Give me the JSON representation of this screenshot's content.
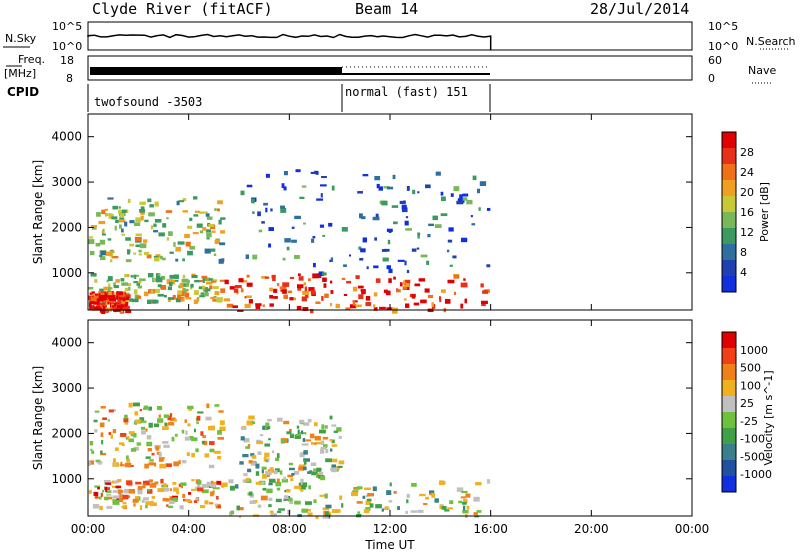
{
  "header": {
    "title": "Clyde River (fitACF)",
    "beam": "Beam 14",
    "date": "28/Jul/2014"
  },
  "summary": {
    "nsky_label": "N.Sky",
    "nsky_top": "10^5",
    "nsky_bottom": "10^0",
    "nsearch_label": "N.Search",
    "nsearch_top": "10^5",
    "nsearch_bottom": "10^0",
    "freq_label_1": "Freq.",
    "freq_label_2": "[MHz]",
    "freq_top": "18",
    "freq_bottom": "8",
    "nave_label": "Nave",
    "nave_top": "60",
    "nave_bottom": "0",
    "cpid_label": "CPID",
    "cpid_1": "twofsound -3503",
    "cpid_2": "normal (fast) 151"
  },
  "colors": {
    "power": [
      "#1030e0",
      "#2040b0",
      "#2f6fa0",
      "#3a9a60",
      "#78b858",
      "#c8c838",
      "#f0a020",
      "#f07018",
      "#e83018",
      "#e00000"
    ],
    "velocity": [
      "#1030e0",
      "#2050a0",
      "#3a7f8a",
      "#3fa048",
      "#70c040",
      "#c0c0c0",
      "#f0b020",
      "#f08018",
      "#f04018",
      "#e00000"
    ]
  },
  "chart_data": [
    {
      "type": "heatmap",
      "title": "Power",
      "ylabel": "Slant Range [km]",
      "xlabel": "Time UT",
      "x_ticks": [
        "00:00",
        "04:00",
        "08:00",
        "12:00",
        "16:00",
        "20:00",
        "00:00"
      ],
      "y_ticks": [
        "1000",
        "2000",
        "3000",
        "4000"
      ],
      "x_range_hours": [
        0,
        24
      ],
      "y_range_km": [
        180,
        4500
      ],
      "colorbar_label": "Power [dB]",
      "colorbar_ticks": [
        "4",
        "8",
        "12",
        "16",
        "20",
        "24",
        "28"
      ],
      "data_end_hour": 16,
      "regions": [
        {
          "t0": 0,
          "t1": 5.3,
          "r0": 1300,
          "r1": 2700,
          "level": 0.5
        },
        {
          "t0": 0,
          "t1": 5.3,
          "r0": 400,
          "r1": 1000,
          "level": 0.55
        },
        {
          "t0": 0,
          "t1": 1.5,
          "r0": 180,
          "r1": 600,
          "level": 0.9
        },
        {
          "t0": 5.3,
          "t1": 16,
          "r0": 180,
          "r1": 1000,
          "level": 0.85
        },
        {
          "t0": 6,
          "t1": 16,
          "r0": 1000,
          "r1": 3300,
          "level": 0.2
        }
      ]
    },
    {
      "type": "heatmap",
      "title": "Velocity",
      "ylabel": "Slant Range [km]",
      "xlabel": "Time UT",
      "x_ticks": [
        "00:00",
        "04:00",
        "08:00",
        "12:00",
        "16:00",
        "20:00",
        "00:00"
      ],
      "y_ticks": [
        "1000",
        "2000",
        "3000",
        "4000"
      ],
      "x_range_hours": [
        0,
        24
      ],
      "y_range_km": [
        180,
        4500
      ],
      "colorbar_label": "Velocity [m s^-1]",
      "colorbar_ticks": [
        "1000",
        "500",
        "100",
        "25",
        "-25",
        "-100",
        "-500",
        "-1000"
      ],
      "data_end_hour": 16,
      "regions": [
        {
          "t0": 0,
          "t1": 5.3,
          "r0": 1300,
          "r1": 2700,
          "level": 0.6
        },
        {
          "t0": 0,
          "t1": 5.3,
          "r0": 400,
          "r1": 1000,
          "level": 0.7
        },
        {
          "t0": 5.3,
          "t1": 16,
          "r0": 180,
          "r1": 1000,
          "level": 0.5
        },
        {
          "t0": 6,
          "t1": 10,
          "r0": 1000,
          "r1": 2400,
          "level": 0.5
        }
      ]
    }
  ]
}
